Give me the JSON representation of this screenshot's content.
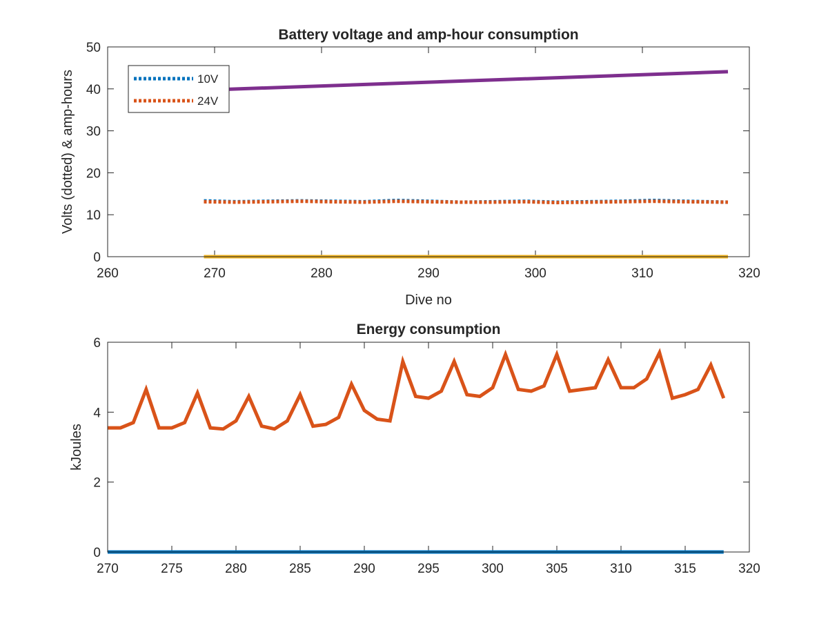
{
  "chart_data": [
    {
      "type": "line",
      "title": "Battery voltage and amp-hour consumption",
      "xlabel": "Dive no",
      "ylabel": "Volts (dotted) & amp-hours",
      "xlim": [
        260,
        320
      ],
      "ylim": [
        0,
        50
      ],
      "xticks": [
        260,
        270,
        280,
        290,
        300,
        310,
        320
      ],
      "yticks": [
        0,
        10,
        20,
        30,
        40,
        50
      ],
      "legend_placement": "top-left",
      "series": [
        {
          "name": "10V",
          "style": "dotted",
          "color": "#0072BD",
          "x": [
            269,
            272,
            275,
            278,
            281,
            284,
            287,
            290,
            293,
            296,
            299,
            302,
            305,
            308,
            311,
            314,
            318
          ],
          "y": [
            13.3,
            13.1,
            13.2,
            13.3,
            13.2,
            13.1,
            13.4,
            13.2,
            13.0,
            13.1,
            13.2,
            13.0,
            13.1,
            13.2,
            13.4,
            13.2,
            13.0
          ]
        },
        {
          "name": "24V",
          "style": "dotted",
          "color": "#D95319",
          "x": [
            269,
            272,
            275,
            278,
            281,
            284,
            287,
            290,
            293,
            296,
            299,
            302,
            305,
            308,
            311,
            314,
            318
          ],
          "y": [
            13.1,
            13.0,
            13.1,
            13.2,
            13.1,
            13.0,
            13.2,
            13.1,
            13.0,
            13.0,
            13.1,
            12.9,
            13.0,
            13.1,
            13.2,
            13.1,
            13.0
          ]
        },
        {
          "style": "solid",
          "color": "#7E2F8E",
          "x": [
            269,
            318
          ],
          "y": [
            39.7,
            44.1
          ]
        },
        {
          "style": "solid",
          "color": "#EDB120",
          "x": [
            269,
            318
          ],
          "y": [
            0,
            0
          ]
        }
      ]
    },
    {
      "type": "line",
      "title": "Energy consumption",
      "xlabel": "",
      "ylabel": "kJoules",
      "xlim": [
        270,
        320
      ],
      "ylim": [
        0,
        6
      ],
      "xticks": [
        270,
        275,
        280,
        285,
        290,
        295,
        300,
        305,
        310,
        315,
        320
      ],
      "yticks": [
        0,
        2,
        4,
        6
      ],
      "series": [
        {
          "style": "solid",
          "color": "#D95319",
          "x": [
            270,
            271,
            272,
            273,
            274,
            275,
            276,
            277,
            278,
            279,
            280,
            281,
            282,
            283,
            284,
            285,
            286,
            287,
            288,
            289,
            290,
            291,
            292,
            293,
            294,
            295,
            296,
            297,
            298,
            299,
            300,
            301,
            302,
            303,
            304,
            305,
            306,
            307,
            308,
            309,
            310,
            311,
            312,
            313,
            314,
            315,
            316,
            317,
            318
          ],
          "y": [
            3.55,
            3.55,
            3.7,
            4.65,
            3.55,
            3.55,
            3.7,
            4.55,
            3.55,
            3.52,
            3.75,
            4.45,
            3.6,
            3.52,
            3.75,
            4.5,
            3.6,
            3.65,
            3.85,
            4.8,
            4.05,
            3.8,
            3.75,
            5.45,
            4.45,
            4.4,
            4.6,
            5.45,
            4.5,
            4.45,
            4.7,
            5.65,
            4.65,
            4.6,
            4.75,
            5.65,
            4.6,
            4.65,
            4.7,
            5.5,
            4.7,
            4.7,
            4.95,
            5.7,
            4.4,
            4.5,
            4.65,
            5.35,
            4.4
          ]
        },
        {
          "style": "solid",
          "color": "#0072BD",
          "x": [
            270,
            318
          ],
          "y": [
            0,
            0
          ]
        }
      ]
    }
  ]
}
